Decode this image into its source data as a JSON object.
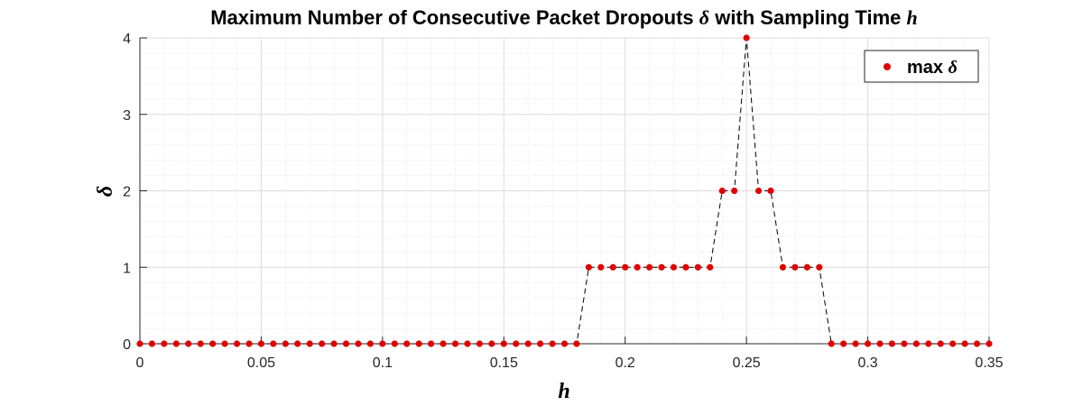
{
  "chart_data": {
    "type": "line",
    "title": "Maximum Number of Consecutive Packet Dropouts",
    "title_symbol": "δ",
    "title_mid": "with Sampling Time",
    "title_symbol2": "h",
    "xlabel": "h",
    "ylabel": "δ",
    "xlim": [
      0,
      0.35
    ],
    "ylim": [
      0,
      4
    ],
    "xticks": [
      "0",
      "0.05",
      "0.1",
      "0.15",
      "0.2",
      "0.25",
      "0.3",
      "0.35"
    ],
    "yticks": [
      "0",
      "1",
      "2",
      "3",
      "4"
    ],
    "grid": true,
    "minor_grid": true,
    "legend": {
      "position": "top-right",
      "label": "max",
      "label_symbol": "δ"
    },
    "series": [
      {
        "name": "max δ",
        "line_style": "dashed",
        "line_color": "#000000",
        "marker_color": "#e00000",
        "x": [
          0,
          0.005,
          0.01,
          0.015,
          0.02,
          0.025,
          0.03,
          0.035,
          0.04,
          0.045,
          0.05,
          0.055,
          0.06,
          0.065,
          0.07,
          0.075,
          0.08,
          0.085,
          0.09,
          0.095,
          0.1,
          0.105,
          0.11,
          0.115,
          0.12,
          0.125,
          0.13,
          0.135,
          0.14,
          0.145,
          0.15,
          0.155,
          0.16,
          0.165,
          0.17,
          0.175,
          0.18,
          0.185,
          0.19,
          0.195,
          0.2,
          0.205,
          0.21,
          0.215,
          0.22,
          0.225,
          0.23,
          0.235,
          0.24,
          0.245,
          0.25,
          0.255,
          0.26,
          0.265,
          0.27,
          0.275,
          0.28,
          0.285,
          0.29,
          0.295,
          0.3,
          0.305,
          0.31,
          0.315,
          0.32,
          0.325,
          0.33,
          0.335,
          0.34,
          0.345,
          0.35
        ],
        "values": [
          0,
          0,
          0,
          0,
          0,
          0,
          0,
          0,
          0,
          0,
          0,
          0,
          0,
          0,
          0,
          0,
          0,
          0,
          0,
          0,
          0,
          0,
          0,
          0,
          0,
          0,
          0,
          0,
          0,
          0,
          0,
          0,
          0,
          0,
          0,
          0,
          0,
          1,
          1,
          1,
          1,
          1,
          1,
          1,
          1,
          1,
          1,
          1,
          2,
          2,
          4,
          2,
          2,
          1,
          1,
          1,
          1,
          0,
          0,
          0,
          0,
          0,
          0,
          0,
          0,
          0,
          0,
          0,
          0,
          0,
          0
        ]
      }
    ]
  }
}
